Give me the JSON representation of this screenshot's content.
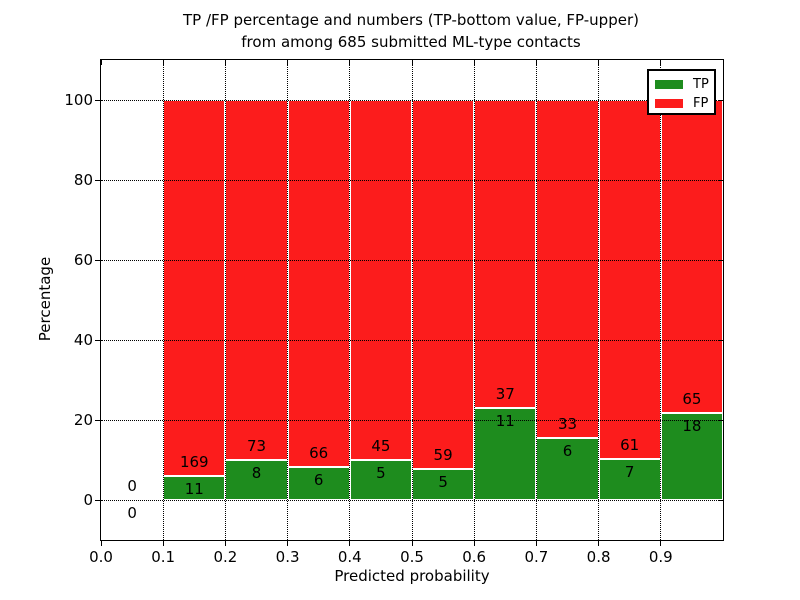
{
  "figure": {
    "title_line1": "TP /FP percentage and numbers (TP-bottom value, FP-upper)",
    "title_line2": "from among 685 submitted ML-type contacts",
    "xlabel": "Predicted probability",
    "ylabel": "Percentage"
  },
  "legend": {
    "position": "upper right",
    "items": [
      {
        "label": "TP",
        "color": "#1e8c1e"
      },
      {
        "label": "FP",
        "color": "#fc1c1c"
      }
    ]
  },
  "chart_data": {
    "type": "bar",
    "stacked": true,
    "normalized": "each bar totals 100% of its bin; green height = TP share",
    "title": "TP /FP percentage and numbers (TP-bottom value, FP-upper) from among 685 submitted ML-type contacts",
    "xlabel": "Predicted probability",
    "ylabel": "Percentage",
    "total_submitted": 685,
    "xlim": [
      0.0,
      1.0
    ],
    "ylim": [
      -10,
      110
    ],
    "xtick_values": [
      0.0,
      0.1,
      0.2,
      0.3,
      0.4,
      0.5,
      0.6,
      0.7,
      0.8,
      0.9
    ],
    "xtick_labels": [
      "0.0",
      "0.1",
      "0.2",
      "0.3",
      "0.4",
      "0.5",
      "0.6",
      "0.7",
      "0.8",
      "0.9"
    ],
    "ytick_values": [
      0,
      20,
      40,
      60,
      80,
      100
    ],
    "ytick_labels": [
      "0",
      "20",
      "40",
      "60",
      "80",
      "100"
    ],
    "grid": "dotted both axes",
    "legend_position": "upper right",
    "series": [
      {
        "name": "TP",
        "color": "#1e8c1e"
      },
      {
        "name": "FP",
        "color": "#fc1c1c"
      }
    ],
    "bins": [
      {
        "x_start": 0.0,
        "x_end": 0.1,
        "tp": 0,
        "fp": 0,
        "tp_percent": 0.0
      },
      {
        "x_start": 0.1,
        "x_end": 0.2,
        "tp": 11,
        "fp": 169,
        "tp_percent": 6.1
      },
      {
        "x_start": 0.2,
        "x_end": 0.3,
        "tp": 8,
        "fp": 73,
        "tp_percent": 9.9
      },
      {
        "x_start": 0.3,
        "x_end": 0.4,
        "tp": 6,
        "fp": 66,
        "tp_percent": 8.3
      },
      {
        "x_start": 0.4,
        "x_end": 0.5,
        "tp": 5,
        "fp": 45,
        "tp_percent": 10.0
      },
      {
        "x_start": 0.5,
        "x_end": 0.6,
        "tp": 5,
        "fp": 59,
        "tp_percent": 7.8
      },
      {
        "x_start": 0.6,
        "x_end": 0.7,
        "tp": 11,
        "fp": 37,
        "tp_percent": 22.9
      },
      {
        "x_start": 0.7,
        "x_end": 0.8,
        "tp": 6,
        "fp": 33,
        "tp_percent": 15.4
      },
      {
        "x_start": 0.8,
        "x_end": 0.9,
        "tp": 7,
        "fp": 61,
        "tp_percent": 10.3
      },
      {
        "x_start": 0.9,
        "x_end": 1.0,
        "tp": 18,
        "fp": 65,
        "tp_percent": 21.7
      }
    ]
  }
}
